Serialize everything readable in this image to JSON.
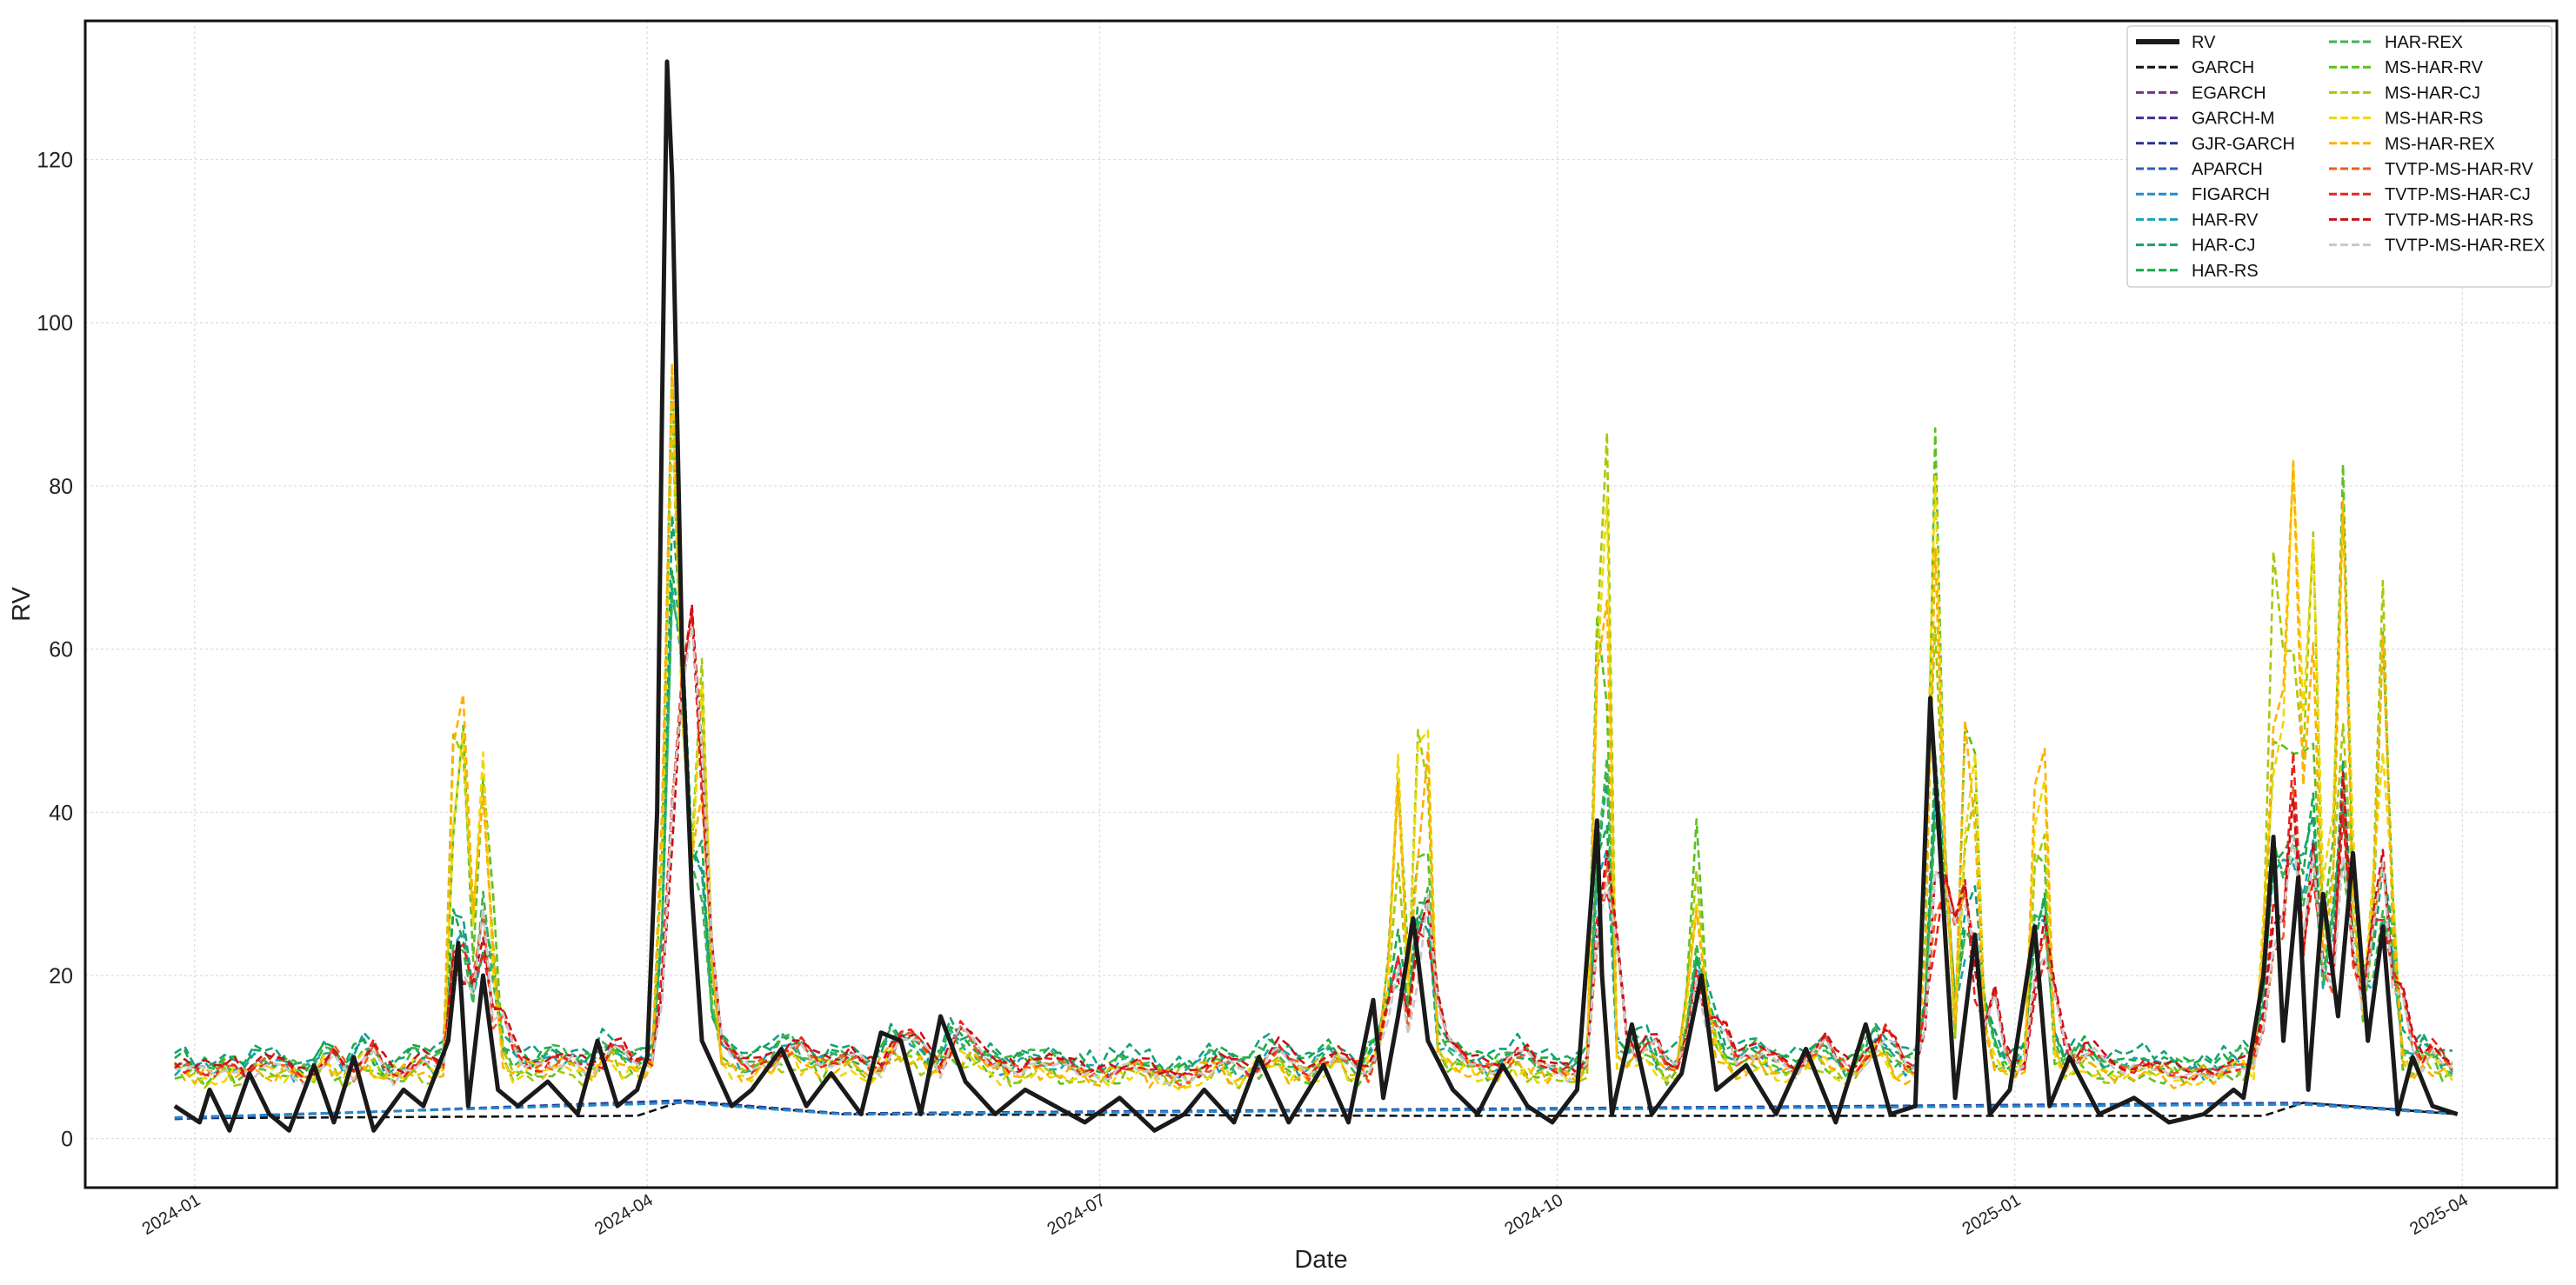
{
  "chart_data": {
    "type": "line",
    "title": "",
    "xlabel": "Date",
    "ylabel": "RV",
    "xlim": [
      "2023-12-10",
      "2025-04-20"
    ],
    "ylim": [
      -6,
      137
    ],
    "grid": true,
    "legend_position": "top-right",
    "legend_columns": 2,
    "x_ticks": [
      "2024-01",
      "2024-04",
      "2024-07",
      "2024-10",
      "2025-01",
      "2025-04"
    ],
    "y_ticks": [
      "0",
      "20",
      "40",
      "60",
      "80",
      "100",
      "120"
    ],
    "series": [
      {
        "name": "RV",
        "color": "#1a1a1a",
        "style": "solid",
        "role": "observed",
        "points": [
          [
            "2023-12-28",
            4
          ],
          [
            "2024-01-02",
            2
          ],
          [
            "2024-01-04",
            6
          ],
          [
            "2024-01-08",
            1
          ],
          [
            "2024-01-12",
            8
          ],
          [
            "2024-01-16",
            3
          ],
          [
            "2024-01-20",
            1
          ],
          [
            "2024-01-25",
            9
          ],
          [
            "2024-01-29",
            2
          ],
          [
            "2024-02-02",
            10
          ],
          [
            "2024-02-06",
            1
          ],
          [
            "2024-02-12",
            6
          ],
          [
            "2024-02-16",
            4
          ],
          [
            "2024-02-21",
            12
          ],
          [
            "2024-02-23",
            24
          ],
          [
            "2024-02-25",
            4
          ],
          [
            "2024-02-28",
            20
          ],
          [
            "2024-03-02",
            6
          ],
          [
            "2024-03-06",
            4
          ],
          [
            "2024-03-12",
            7
          ],
          [
            "2024-03-18",
            3
          ],
          [
            "2024-03-22",
            12
          ],
          [
            "2024-03-26",
            4
          ],
          [
            "2024-03-30",
            6
          ],
          [
            "2024-04-01",
            10
          ],
          [
            "2024-04-03",
            40
          ],
          [
            "2024-04-04",
            90
          ],
          [
            "2024-04-05",
            132
          ],
          [
            "2024-04-06",
            118
          ],
          [
            "2024-04-08",
            60
          ],
          [
            "2024-04-10",
            30
          ],
          [
            "2024-04-12",
            12
          ],
          [
            "2024-04-15",
            8
          ],
          [
            "2024-04-18",
            4
          ],
          [
            "2024-04-22",
            6
          ],
          [
            "2024-04-28",
            11
          ],
          [
            "2024-05-03",
            4
          ],
          [
            "2024-05-08",
            8
          ],
          [
            "2024-05-14",
            3
          ],
          [
            "2024-05-18",
            13
          ],
          [
            "2024-05-22",
            12
          ],
          [
            "2024-05-26",
            3
          ],
          [
            "2024-05-30",
            15
          ],
          [
            "2024-06-04",
            7
          ],
          [
            "2024-06-10",
            3
          ],
          [
            "2024-06-16",
            6
          ],
          [
            "2024-06-22",
            4
          ],
          [
            "2024-06-28",
            2
          ],
          [
            "2024-07-05",
            5
          ],
          [
            "2024-07-12",
            1
          ],
          [
            "2024-07-18",
            3
          ],
          [
            "2024-07-22",
            6
          ],
          [
            "2024-07-28",
            2
          ],
          [
            "2024-08-02",
            10
          ],
          [
            "2024-08-08",
            2
          ],
          [
            "2024-08-15",
            9
          ],
          [
            "2024-08-20",
            2
          ],
          [
            "2024-08-25",
            17
          ],
          [
            "2024-08-27",
            5
          ],
          [
            "2024-08-30",
            15
          ],
          [
            "2024-09-02",
            27
          ],
          [
            "2024-09-05",
            12
          ],
          [
            "2024-09-10",
            6
          ],
          [
            "2024-09-15",
            3
          ],
          [
            "2024-09-20",
            9
          ],
          [
            "2024-09-25",
            4
          ],
          [
            "2024-09-30",
            2
          ],
          [
            "2024-10-05",
            6
          ],
          [
            "2024-10-09",
            39
          ],
          [
            "2024-10-10",
            20
          ],
          [
            "2024-10-12",
            3
          ],
          [
            "2024-10-16",
            14
          ],
          [
            "2024-10-20",
            3
          ],
          [
            "2024-10-26",
            8
          ],
          [
            "2024-10-30",
            20
          ],
          [
            "2024-11-02",
            6
          ],
          [
            "2024-11-08",
            9
          ],
          [
            "2024-11-14",
            3
          ],
          [
            "2024-11-20",
            11
          ],
          [
            "2024-11-26",
            2
          ],
          [
            "2024-12-02",
            14
          ],
          [
            "2024-12-07",
            3
          ],
          [
            "2024-12-12",
            4
          ],
          [
            "2024-12-15",
            54
          ],
          [
            "2024-12-17",
            35
          ],
          [
            "2024-12-20",
            5
          ],
          [
            "2024-12-24",
            25
          ],
          [
            "2024-12-27",
            3
          ],
          [
            "2024-12-31",
            6
          ],
          [
            "2025-01-05",
            26
          ],
          [
            "2025-01-08",
            4
          ],
          [
            "2025-01-12",
            10
          ],
          [
            "2025-01-18",
            3
          ],
          [
            "2025-01-25",
            5
          ],
          [
            "2025-02-01",
            2
          ],
          [
            "2025-02-08",
            3
          ],
          [
            "2025-02-14",
            6
          ],
          [
            "2025-02-16",
            5
          ],
          [
            "2025-02-20",
            20
          ],
          [
            "2025-02-22",
            37
          ],
          [
            "2025-02-24",
            12
          ],
          [
            "2025-02-27",
            32
          ],
          [
            "2025-03-01",
            6
          ],
          [
            "2025-03-04",
            30
          ],
          [
            "2025-03-07",
            15
          ],
          [
            "2025-03-10",
            35
          ],
          [
            "2025-03-13",
            12
          ],
          [
            "2025-03-16",
            26
          ],
          [
            "2025-03-19",
            3
          ],
          [
            "2025-03-22",
            10
          ],
          [
            "2025-03-26",
            4
          ],
          [
            "2025-03-31",
            3
          ]
        ]
      },
      {
        "name": "GARCH",
        "color": "#111111",
        "style": "dashed",
        "role": "flat-low",
        "points": [
          [
            "2023-12-28",
            2.5
          ],
          [
            "2024-03-30",
            2.8
          ],
          [
            "2024-04-08",
            4.6
          ],
          [
            "2024-05-10",
            3.0
          ],
          [
            "2024-09-01",
            2.8
          ],
          [
            "2025-02-20",
            2.8
          ],
          [
            "2025-02-28",
            4.4
          ],
          [
            "2025-03-31",
            3.0
          ]
        ]
      },
      {
        "name": "EGARCH",
        "color": "#7b2d8e",
        "style": "dashed",
        "role": "flat-low",
        "points": [
          [
            "2023-12-28",
            2.6
          ],
          [
            "2024-04-08",
            4.4
          ],
          [
            "2024-05-10",
            3.0
          ],
          [
            "2025-02-28",
            4.2
          ],
          [
            "2025-03-31",
            3.0
          ]
        ]
      },
      {
        "name": "GARCH-M",
        "color": "#4b2a90",
        "style": "dashed",
        "role": "flat-low",
        "points": [
          [
            "2023-12-28",
            2.5
          ],
          [
            "2024-04-08",
            4.5
          ],
          [
            "2024-05-10",
            3.0
          ],
          [
            "2025-02-28",
            4.3
          ],
          [
            "2025-03-31",
            3.0
          ]
        ]
      },
      {
        "name": "GJR-GARCH",
        "color": "#253494",
        "style": "dashed",
        "role": "flat-low",
        "points": [
          [
            "2023-12-28",
            2.4
          ],
          [
            "2024-04-08",
            4.7
          ],
          [
            "2024-05-10",
            3.1
          ],
          [
            "2025-02-28",
            4.4
          ],
          [
            "2025-03-31",
            3.1
          ]
        ]
      },
      {
        "name": "APARCH",
        "color": "#2c5fbf",
        "style": "dashed",
        "role": "flat-low",
        "points": [
          [
            "2023-12-28",
            2.5
          ],
          [
            "2024-04-08",
            4.5
          ],
          [
            "2024-05-10",
            3.0
          ],
          [
            "2025-02-28",
            4.3
          ],
          [
            "2025-03-31",
            3.0
          ]
        ]
      },
      {
        "name": "FIGARCH",
        "color": "#1f8ecf",
        "style": "dashed",
        "role": "flat-low",
        "points": [
          [
            "2023-12-28",
            2.6
          ],
          [
            "2024-04-08",
            4.4
          ],
          [
            "2024-05-10",
            3.0
          ],
          [
            "2025-02-28",
            4.2
          ],
          [
            "2025-03-31",
            3.0
          ]
        ]
      },
      {
        "name": "HAR-RV",
        "color": "#17a2b8",
        "style": "dashed",
        "role": "smooth",
        "points": []
      },
      {
        "name": "HAR-CJ",
        "color": "#12a07a",
        "style": "dashed",
        "role": "smooth",
        "points": []
      },
      {
        "name": "HAR-RS",
        "color": "#1aa84a",
        "style": "dashed",
        "role": "smooth",
        "points": []
      },
      {
        "name": "HAR-REX",
        "color": "#3cb44b",
        "style": "dashed",
        "role": "smooth",
        "points": []
      },
      {
        "name": "MS-HAR-RV",
        "color": "#5cc020",
        "style": "dashed",
        "role": "spiky",
        "points": []
      },
      {
        "name": "MS-HAR-CJ",
        "color": "#a6c90a",
        "style": "dashed",
        "role": "spiky",
        "points": []
      },
      {
        "name": "MS-HAR-RS",
        "color": "#f0d800",
        "style": "dashed",
        "role": "spiky",
        "points": []
      },
      {
        "name": "MS-HAR-REX",
        "color": "#ffb000",
        "style": "dashed",
        "role": "spiky",
        "points": []
      },
      {
        "name": "TVTP-MS-HAR-RV",
        "color": "#f05a22",
        "style": "dashed",
        "role": "regime",
        "points": []
      },
      {
        "name": "TVTP-MS-HAR-CJ",
        "color": "#e8231f",
        "style": "dashed",
        "role": "regime",
        "points": []
      },
      {
        "name": "TVTP-MS-HAR-RS",
        "color": "#c81018",
        "style": "dashed",
        "role": "regime",
        "points": []
      },
      {
        "name": "TVTP-MS-HAR-REX",
        "color": "#c8c8c8",
        "style": "dashed",
        "role": "regime",
        "points": []
      }
    ]
  }
}
